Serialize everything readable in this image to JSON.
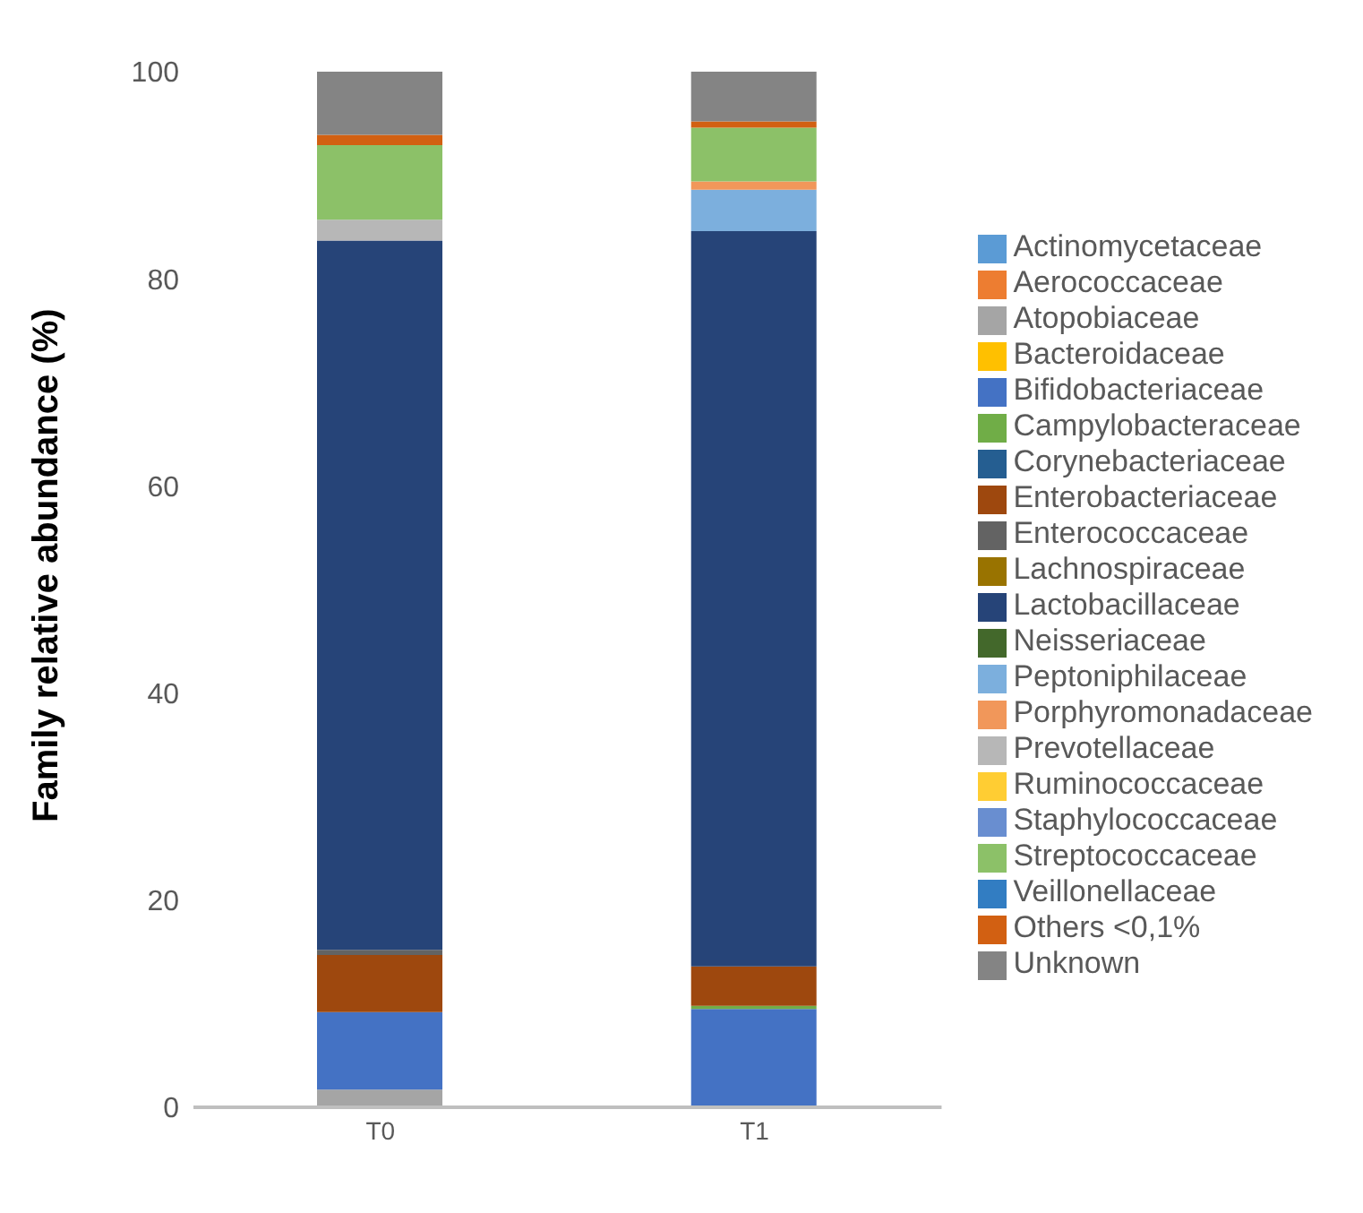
{
  "chart_data": {
    "type": "bar",
    "stacked": true,
    "ylabel": "Family relative abundance (%)",
    "categories": [
      "T0",
      "T1"
    ],
    "ylim": [
      0,
      100
    ],
    "yticks": [
      0,
      20,
      40,
      60,
      80,
      100
    ],
    "grid": false,
    "legend": "right",
    "series": [
      {
        "name": "Actinomycetaceae",
        "color": "#5b9bd5",
        "values": [
          0,
          0
        ]
      },
      {
        "name": "Aerococcaceae",
        "color": "#ed7d31",
        "values": [
          0,
          0
        ]
      },
      {
        "name": "Atopobiaceae",
        "color": "#a5a5a5",
        "values": [
          1.7,
          0
        ]
      },
      {
        "name": "Bacteroidaceae",
        "color": "#ffc000",
        "values": [
          0,
          0
        ]
      },
      {
        "name": "Bifidobacteriaceae",
        "color": "#4472c4",
        "values": [
          7.5,
          9.5
        ]
      },
      {
        "name": "Campylobacteraceae",
        "color": "#70ad47",
        "values": [
          0,
          0.3
        ]
      },
      {
        "name": "Corynebacteriaceae",
        "color": "#255e91",
        "values": [
          0,
          0
        ]
      },
      {
        "name": "Enterobacteriaceae",
        "color": "#9e480e",
        "values": [
          5.5,
          3.8
        ]
      },
      {
        "name": "Enterococcaceae",
        "color": "#636363",
        "values": [
          0.5,
          0
        ]
      },
      {
        "name": "Lachnospiraceae",
        "color": "#997300",
        "values": [
          0,
          0
        ]
      },
      {
        "name": "Lactobacillaceae",
        "color": "#264478",
        "values": [
          68.5,
          71
        ]
      },
      {
        "name": "Neisseriaceae",
        "color": "#43682b",
        "values": [
          0,
          0
        ]
      },
      {
        "name": "Peptoniphilaceae",
        "color": "#7cafdd",
        "values": [
          0,
          4
        ]
      },
      {
        "name": "Porphyromonadaceae",
        "color": "#f1975a",
        "values": [
          0,
          0.8
        ]
      },
      {
        "name": "Prevotellaceae",
        "color": "#b7b7b7",
        "values": [
          2,
          0
        ]
      },
      {
        "name": "Ruminococcaceae",
        "color": "#ffcd33",
        "values": [
          0,
          0
        ]
      },
      {
        "name": "Staphylococcaceae",
        "color": "#698ed0",
        "values": [
          0,
          0
        ]
      },
      {
        "name": "Streptococcaceae",
        "color": "#8cc168",
        "values": [
          7.2,
          5.2
        ]
      },
      {
        "name": "Veillonellaceae",
        "color": "#327dc2",
        "values": [
          0,
          0
        ]
      },
      {
        "name": "Others <0,1%",
        "color": "#d26012",
        "values": [
          1,
          0.6
        ]
      },
      {
        "name": "Unknown",
        "color": "#848484",
        "values": [
          6.1,
          4.8
        ]
      }
    ]
  }
}
